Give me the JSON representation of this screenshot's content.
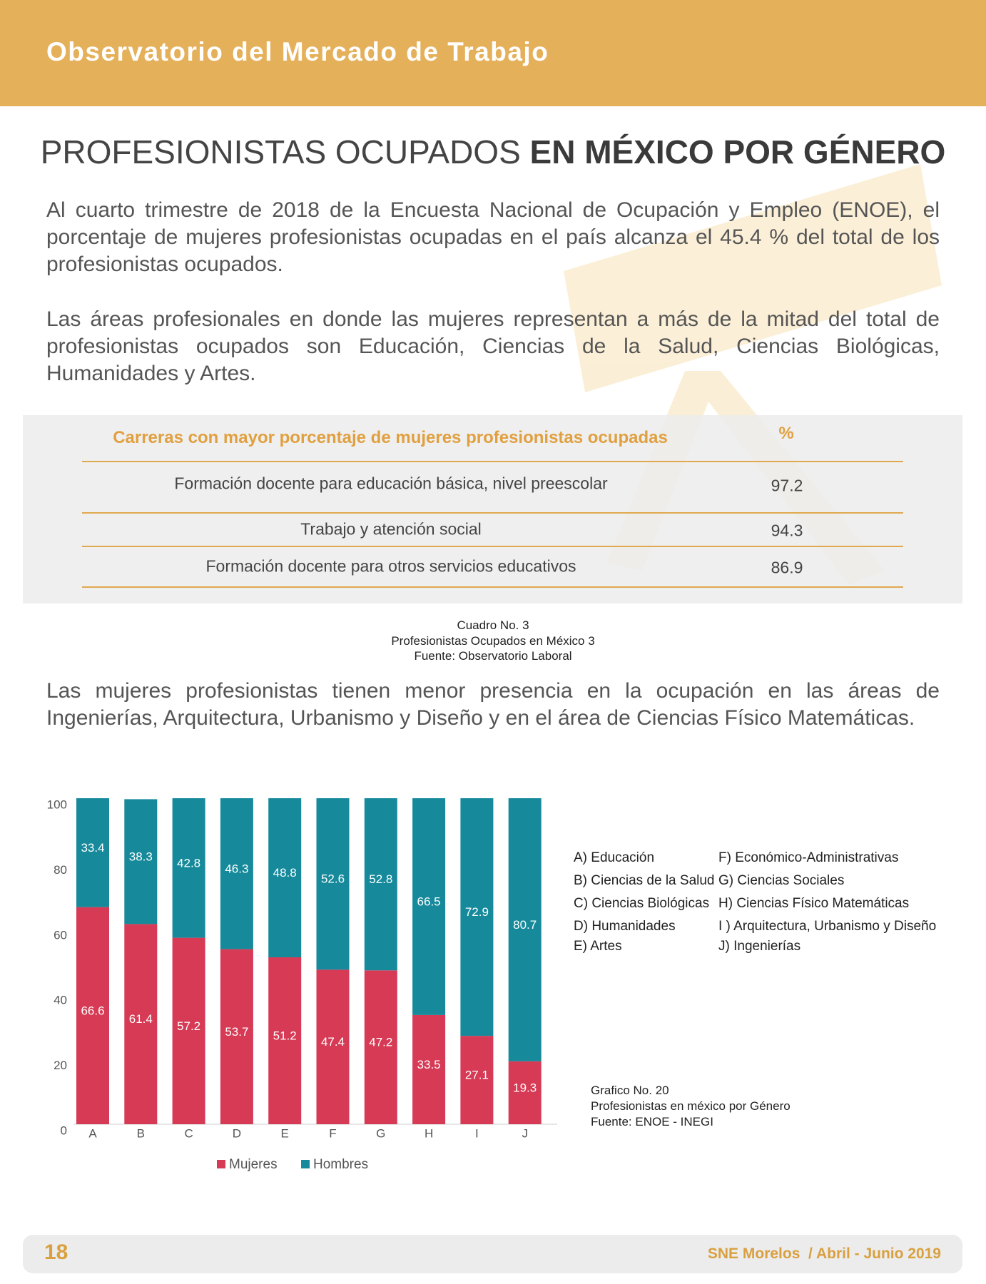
{
  "header": {
    "title": "Observatorio del Mercado de Trabajo"
  },
  "title": {
    "light": "PROFESIONISTAS OCUPADOS",
    "bold": "EN MÉXICO POR GÉNERO"
  },
  "intro": [
    "Al cuarto trimestre de 2018 de la Encuesta Nacional de Ocupación y Empleo (ENOE), el porcentaje de mujeres profesionistas ocupadas en el país alcanza el 45.4 % del total de los profesionistas ocupados.",
    "Las áreas profesionales en donde las mujeres representan a más de la mitad del total de profesionistas ocupados son Educación, Ciencias de la Salud, Ciencias Biológicas, Humanidades y Artes."
  ],
  "table": {
    "header": [
      "Carreras con mayor porcentaje de mujeres profesionistas ocupadas",
      "%"
    ],
    "rows": [
      [
        "Formación docente para educación básica, nivel preescolar",
        97.2
      ],
      [
        "Trabajo y atención social",
        94.3
      ],
      [
        "Formación docente para otros servicios educativos",
        86.9
      ]
    ]
  },
  "table_caption": [
    "Cuadro No. 3",
    "Profesionistas Ocupados en México 3",
    "Fuente: Observatorio Laboral"
  ],
  "paragraph_after": "Las mujeres profesionistas tienen menor presencia en la ocupación en las áreas de Ingenierías, Arquitectura, Urbanismo y Diseño y en el área de Ciencias Físico Matemáticas.",
  "chart_data": {
    "type": "stacked_bar",
    "categories": [
      "A",
      "B",
      "C",
      "D",
      "E",
      "F",
      "G",
      "H",
      "I",
      "J"
    ],
    "series": [
      {
        "name": "Mujeres",
        "color": "#d63a55",
        "values": [
          66.6,
          61.4,
          57.2,
          53.7,
          51.2,
          47.4,
          47.2,
          33.5,
          27.1,
          19.3
        ]
      },
      {
        "name": "Hombres",
        "color": "#168a9b",
        "values": [
          33.4,
          38.3,
          42.8,
          46.3,
          48.8,
          52.6,
          52.8,
          66.5,
          72.9,
          80.7
        ]
      }
    ],
    "ylim": [
      0,
      100
    ],
    "yticks": [
      0,
      20,
      40,
      60,
      80,
      100
    ],
    "grid": false,
    "legend": "bottom"
  },
  "chart_key": [
    "A) Educación",
    "B) Ciencias de la Salud",
    "C) Ciencias Biológicas",
    "D) Humanidades",
    "E) Artes",
    "F) Económico-Administrativas",
    "G) Ciencias Sociales",
    "H) Ciencias Físico Matemáticas",
    "I ) Arquitectura, Urbanismo y Diseño",
    "J) Ingenierías"
  ],
  "chart_caption": [
    "Grafico No. 20",
    "Profesionistas en méxico por Género",
    "Fuente: ENOE - INEGI"
  ],
  "footer": {
    "page": "18",
    "publication": "SNE Morelos  / Abril - Junio 2019"
  }
}
